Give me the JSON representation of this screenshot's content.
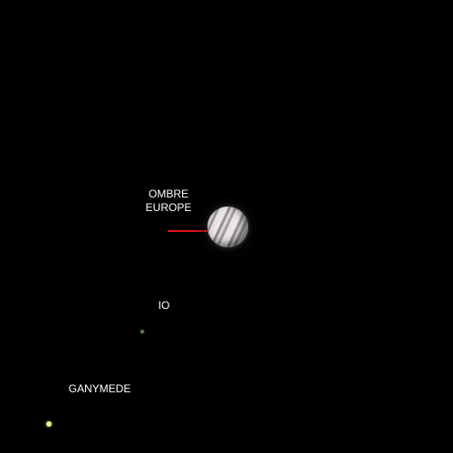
{
  "labels": {
    "shadow_line1": "OMBRE",
    "shadow_line2": "EUROPE",
    "io": "IO",
    "ganymede": "GANYMEDE"
  },
  "colors": {
    "sky": "#000000",
    "label_text": "#ffffff",
    "pointer": "#e3141b",
    "io": "#5c7a52",
    "ganymede": "#e6f29a"
  },
  "objects": {
    "planet": "jupiter",
    "moons": [
      "io",
      "ganymede"
    ],
    "shadow_marker": "red pointer line to Europa's shadow on the planet"
  }
}
